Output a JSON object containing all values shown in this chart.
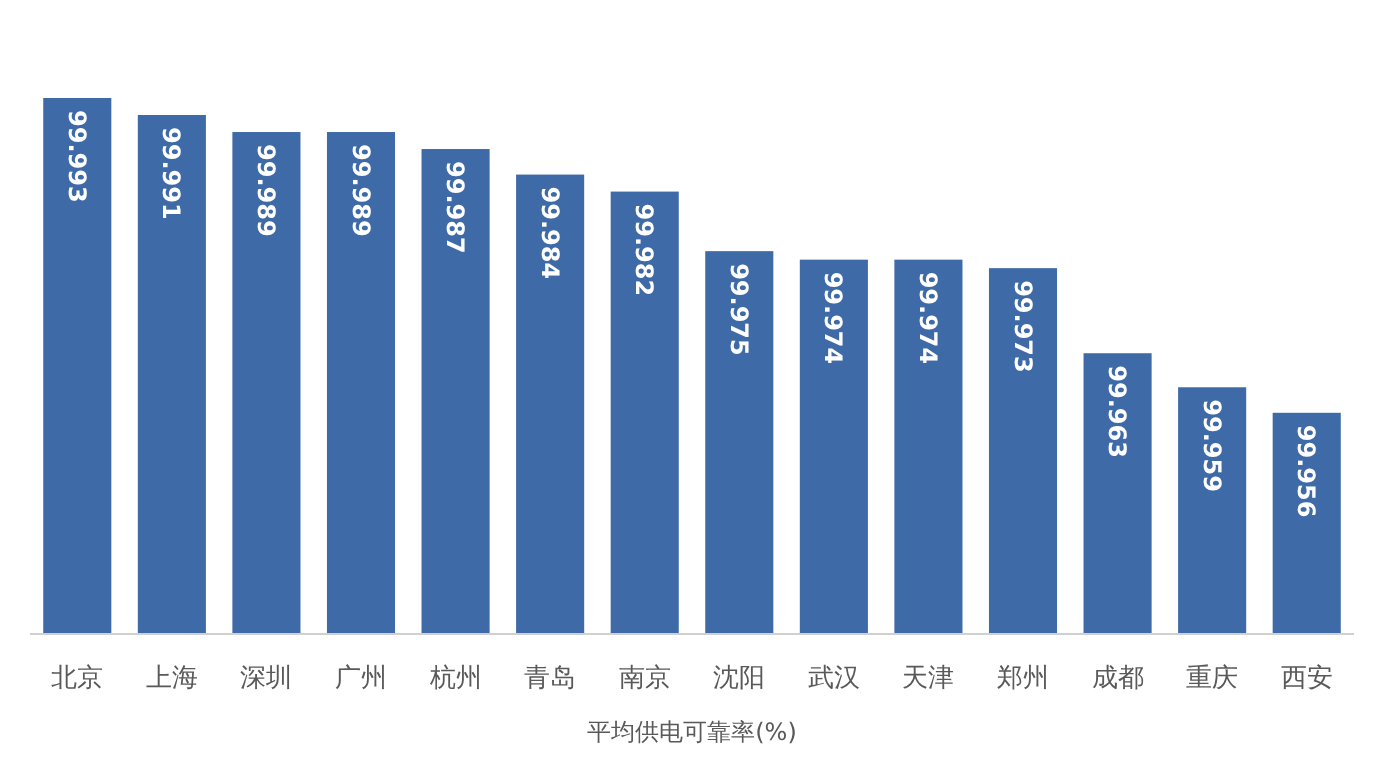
{
  "chart_data": {
    "type": "bar",
    "xlabel": "平均供电可靠率(%)",
    "categories": [
      "北京",
      "上海",
      "深圳",
      "广州",
      "杭州",
      "青岛",
      "南京",
      "沈阳",
      "武汉",
      "天津",
      "郑州",
      "成都",
      "重庆",
      "西安"
    ],
    "values": [
      99.993,
      99.991,
      99.989,
      99.989,
      99.987,
      99.984,
      99.982,
      99.975,
      99.974,
      99.974,
      99.973,
      99.963,
      99.959,
      99.956
    ],
    "color": "#3e6aa7",
    "ylim": [
      99.93,
      99.993
    ],
    "data_labels": true,
    "tick_labels": "x"
  }
}
